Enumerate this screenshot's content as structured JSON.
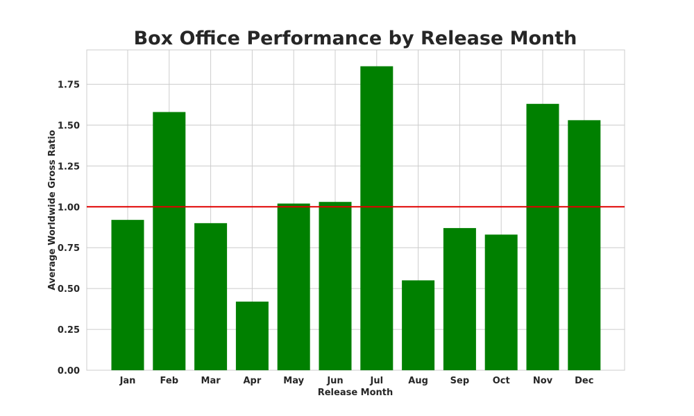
{
  "chart_data": {
    "type": "bar",
    "title": "Box Office Performance by Release Month",
    "xlabel": "Release Month",
    "ylabel": "Average Worldwide Gross Ratio",
    "categories": [
      "Jan",
      "Feb",
      "Mar",
      "Apr",
      "May",
      "Jun",
      "Jul",
      "Aug",
      "Sep",
      "Oct",
      "Nov",
      "Dec"
    ],
    "values": [
      0.92,
      1.58,
      0.9,
      0.42,
      1.02,
      1.03,
      1.86,
      0.55,
      0.87,
      0.83,
      1.63,
      1.53
    ],
    "ylim": [
      0,
      1.96
    ],
    "yticks": [
      0.0,
      0.25,
      0.5,
      0.75,
      1.0,
      1.25,
      1.5,
      1.75
    ],
    "ytick_labels": [
      "0.00",
      "0.25",
      "0.50",
      "0.75",
      "1.00",
      "1.25",
      "1.50",
      "1.75"
    ],
    "reference_line": {
      "y": 1.0,
      "color": "#e00000"
    },
    "bar_color": "#008000",
    "grid": true
  }
}
